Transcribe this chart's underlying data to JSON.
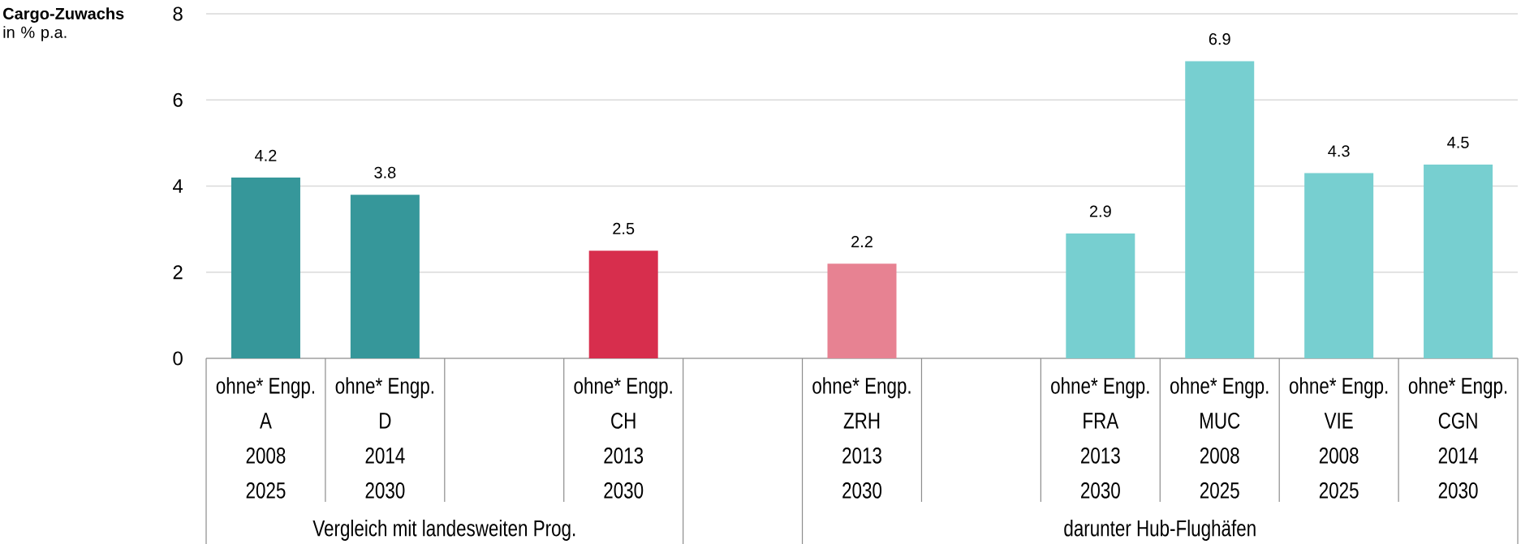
{
  "chart_data": {
    "type": "bar",
    "ylabel": "**Cargo-Zuwachs** in % p.a.",
    "categories": [
      "ohne* Engp.\nA\n2008\n2025",
      "ohne* Engp.\nD\n2014\n2030",
      null,
      "ohne* Engp.\nCH\n2013\n2030",
      null,
      "ohne* Engp.\nZRH\n2013\n2030",
      null,
      "ohne* Engp.\nFRA\n2013\n2030",
      "ohne* Engp.\nMUC\n2008\n2025",
      "ohne* Engp.\nVIE\n2008\n2025",
      "ohne* Engp.\nCGN\n2014\n2030"
    ],
    "values": [
      4.2,
      3.8,
      null,
      2.5,
      null,
      2.2,
      null,
      2.9,
      6.9,
      4.3,
      4.5
    ],
    "colors": [
      "#36979a",
      "#36979a",
      null,
      "#d72e4d",
      null,
      "#e78292",
      null,
      "#77cfd0",
      "#77cfd0",
      "#77cfd0",
      "#77cfd0"
    ],
    "ylim": [
      0,
      8
    ],
    "yticks": [
      0,
      2,
      4,
      6,
      8
    ],
    "grid": "y",
    "data_labels": true,
    "annotations": [
      "Vergleich mit landesweiten Prog.",
      "darunter Hub-Flughäfen"
    ]
  }
}
